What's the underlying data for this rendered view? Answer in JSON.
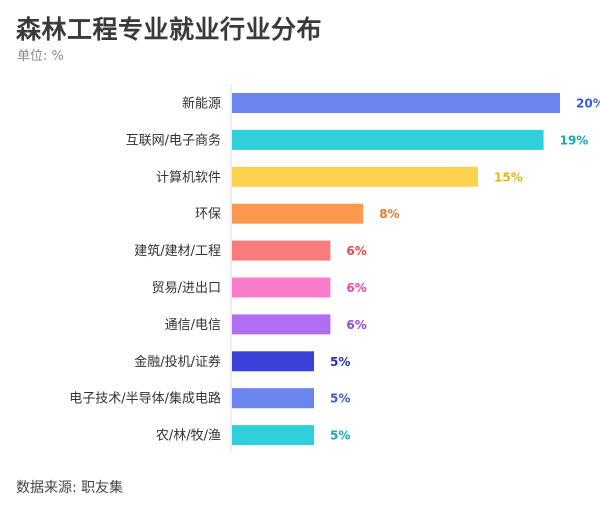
{
  "title": "森林工程专业就业行业分布",
  "subtitle": "单位: %",
  "source": "数据来源: 职友集",
  "chart_data": {
    "type": "bar",
    "orientation": "horizontal",
    "title": "森林工程专业就业行业分布",
    "unit": "%",
    "grid": false,
    "categories": [
      "新能源",
      "互联网/电子商务",
      "计算机软件",
      "环保",
      "建筑/建材/工程",
      "贸易/进出口",
      "通信/电信",
      "金融/投机/证券",
      "电子技术/半导体/集成电路",
      "农/林/牧/渔"
    ],
    "values": [
      20,
      19,
      15,
      8,
      6,
      6,
      6,
      5,
      5,
      5
    ],
    "value_labels": [
      "20%",
      "19%",
      "15%",
      "8%",
      "6%",
      "6%",
      "6%",
      "5%",
      "5%",
      "5%"
    ],
    "colors": [
      "#6b85ee",
      "#2fd0db",
      "#fcd24e",
      "#fb994e",
      "#fa7b7b",
      "#f97bcb",
      "#b16ef3",
      "#3b41d8",
      "#6b85ee",
      "#2fd0db"
    ],
    "label_colors": [
      "#3a5bd9",
      "#17a8b4",
      "#e8b50e",
      "#ee7a2a",
      "#e24c4c",
      "#e845ad",
      "#9447e0",
      "#2a2fb8",
      "#3a5bd9",
      "#17a8b4"
    ],
    "xlim": [
      0,
      20
    ]
  }
}
